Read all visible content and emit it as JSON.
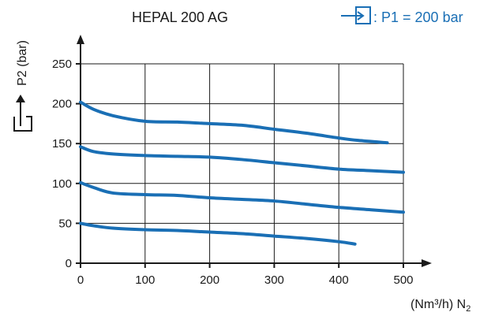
{
  "colors": {
    "series": "#1a6fb5",
    "axis": "#1a1a1a",
    "grid": "#1a1a1a",
    "inlet": "#1a6fb5"
  },
  "icons": {
    "inlet": "inlet-arrow-box-icon",
    "outlet": "outlet-arrow-icon"
  },
  "chart_data": {
    "type": "line",
    "title": "HEPAL 200 AG",
    "inlet_label": ": P1 = 200 bar",
    "ylabel": "P2 (bar)",
    "xlabel_main": "(Nm³/h) N",
    "xlabel_sub": "2",
    "xlim": [
      0,
      500
    ],
    "ylim": [
      0,
      250
    ],
    "xticks": [
      0,
      100,
      200,
      300,
      400,
      500
    ],
    "yticks": [
      0,
      50,
      100,
      150,
      200,
      250
    ],
    "grid": true,
    "series": [
      {
        "x": [
          0,
          20,
          50,
          100,
          150,
          200,
          250,
          300,
          350,
          400,
          430,
          475
        ],
        "y": [
          202,
          193,
          185,
          178,
          177,
          175,
          173,
          168,
          163,
          157,
          154,
          151
        ]
      },
      {
        "x": [
          0,
          20,
          50,
          100,
          150,
          200,
          250,
          300,
          350,
          400,
          450,
          500
        ],
        "y": [
          146,
          140,
          137,
          135,
          134,
          133,
          130,
          126,
          122,
          118,
          116,
          114
        ]
      },
      {
        "x": [
          0,
          20,
          50,
          100,
          150,
          200,
          250,
          300,
          350,
          400,
          450,
          500
        ],
        "y": [
          101,
          95,
          88,
          86,
          85,
          82,
          80,
          78,
          74,
          70,
          67,
          64
        ]
      },
      {
        "x": [
          0,
          20,
          50,
          100,
          150,
          200,
          250,
          300,
          350,
          400,
          425
        ],
        "y": [
          50,
          47,
          44,
          42,
          41,
          39,
          37,
          34,
          31,
          27,
          24
        ]
      }
    ]
  }
}
